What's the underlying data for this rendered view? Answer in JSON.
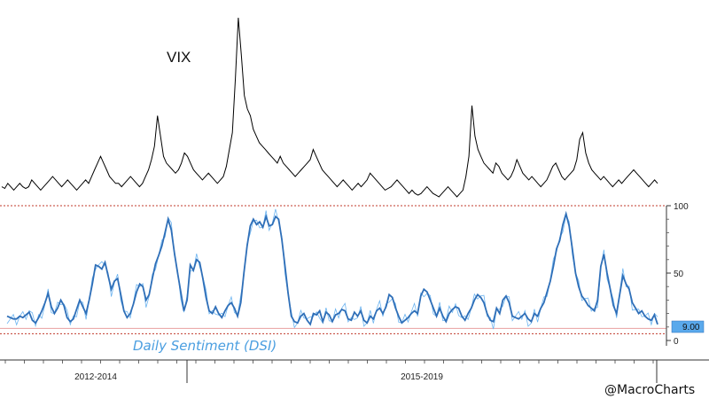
{
  "chart_data": [
    {
      "type": "line",
      "title": "",
      "series": [
        {
          "name": "VIX",
          "color": "#000000",
          "values": [
            13,
            12.5,
            14,
            13,
            12,
            13,
            14,
            13,
            12.5,
            13,
            15,
            14,
            13,
            12,
            13,
            14,
            15,
            16,
            15,
            14,
            13,
            14,
            15,
            14,
            13,
            12,
            13,
            14,
            15,
            14,
            16,
            18,
            20,
            22,
            20,
            18,
            16,
            15,
            14,
            14,
            13,
            14,
            15,
            16,
            15,
            14,
            13,
            14,
            16,
            18,
            21,
            25,
            34,
            28,
            22,
            20,
            19,
            18,
            17,
            18,
            20,
            23,
            22,
            20,
            18,
            17,
            16,
            15,
            16,
            17,
            16,
            15,
            14,
            15,
            16,
            19,
            24,
            29,
            45,
            63,
            52,
            40,
            36,
            34,
            30,
            28,
            26,
            25,
            24,
            23,
            22,
            21,
            20,
            22,
            20,
            19,
            18,
            17,
            16,
            17,
            18,
            19,
            20,
            21,
            24,
            22,
            20,
            18,
            17,
            16,
            15,
            14,
            13,
            14,
            15,
            14,
            13,
            12,
            13,
            14,
            13,
            14,
            15,
            17,
            16,
            15,
            14,
            13,
            12,
            12.5,
            13,
            14,
            15,
            14,
            13,
            12,
            11,
            12,
            11,
            10.5,
            11,
            12,
            13,
            12,
            11,
            10.5,
            10,
            11,
            12,
            13,
            12,
            11,
            10,
            11,
            12,
            16,
            22,
            37,
            28,
            24,
            22,
            20,
            19,
            18,
            17,
            20,
            19,
            17,
            16,
            15,
            16,
            18,
            21,
            19,
            17,
            16,
            15,
            16,
            15,
            14,
            13,
            14,
            15,
            17,
            19,
            20,
            18,
            16,
            15,
            16,
            17,
            18,
            21,
            27,
            29,
            23,
            20,
            18,
            17,
            16,
            15,
            16,
            15,
            14,
            13,
            14,
            15,
            14,
            15,
            16,
            17,
            18,
            17,
            16,
            15,
            14,
            13,
            14,
            15,
            14
          ]
        },
        {
          "name": "Daily Sentiment (DSI)",
          "color": "#2f6fb8",
          "values": [
            18,
            17,
            16,
            16,
            18,
            17,
            19,
            21,
            15,
            13,
            17,
            22,
            28,
            35,
            25,
            20,
            24,
            30,
            26,
            17,
            14,
            16,
            23,
            30,
            25,
            20,
            30,
            42,
            56,
            55,
            53,
            58,
            48,
            38,
            44,
            46,
            34,
            22,
            17,
            20,
            27,
            36,
            42,
            40,
            30,
            34,
            46,
            57,
            63,
            70,
            80,
            90,
            82,
            65,
            50,
            36,
            22,
            30,
            56,
            52,
            60,
            58,
            46,
            32,
            22,
            20,
            25,
            20,
            17,
            22,
            26,
            28,
            24,
            18,
            28,
            50,
            70,
            85,
            90,
            86,
            88,
            84,
            92,
            85,
            86,
            92,
            90,
            75,
            55,
            35,
            18,
            14,
            13,
            18,
            20,
            15,
            12,
            20,
            19,
            22,
            14,
            21,
            19,
            14,
            19,
            20,
            23,
            22,
            16,
            15,
            21,
            18,
            22,
            15,
            13,
            18,
            16,
            22,
            24,
            20,
            25,
            34,
            32,
            24,
            18,
            13,
            15,
            17,
            20,
            22,
            20,
            33,
            38,
            36,
            30,
            24,
            18,
            24,
            18,
            14,
            20,
            23,
            25,
            24,
            18,
            15,
            20,
            24,
            30,
            34,
            32,
            28,
            20,
            15,
            14,
            24,
            20,
            30,
            33,
            28,
            18,
            17,
            16,
            18,
            20,
            16,
            14,
            20,
            18,
            24,
            28,
            36,
            44,
            55,
            68,
            74,
            86,
            94,
            85,
            68,
            50,
            40,
            33,
            30,
            26,
            24,
            22,
            30,
            55,
            64,
            50,
            38,
            26,
            20,
            34,
            48,
            42,
            38,
            28,
            24,
            20,
            22,
            18,
            16,
            15,
            19,
            12
          ]
        }
      ],
      "ylabel": "",
      "y_ticks": [
        "100",
        "50",
        "0"
      ],
      "ylim": [
        0,
        100
      ],
      "reference_lines": [
        {
          "value": 100,
          "style": "dotted",
          "color": "#c0392b"
        },
        {
          "value": 9,
          "style": "solid",
          "color": "#e8a0a0"
        },
        {
          "value": 5,
          "style": "dotted",
          "color": "#c0392b"
        }
      ],
      "last_value_badge": "9.00",
      "x_period_labels": [
        "2012-2014",
        "2015-2019"
      ],
      "labels": {
        "vix": "VIX",
        "dsi": "Daily Sentiment (DSI)"
      },
      "grid": false
    }
  ],
  "credit": "@MacroCharts"
}
